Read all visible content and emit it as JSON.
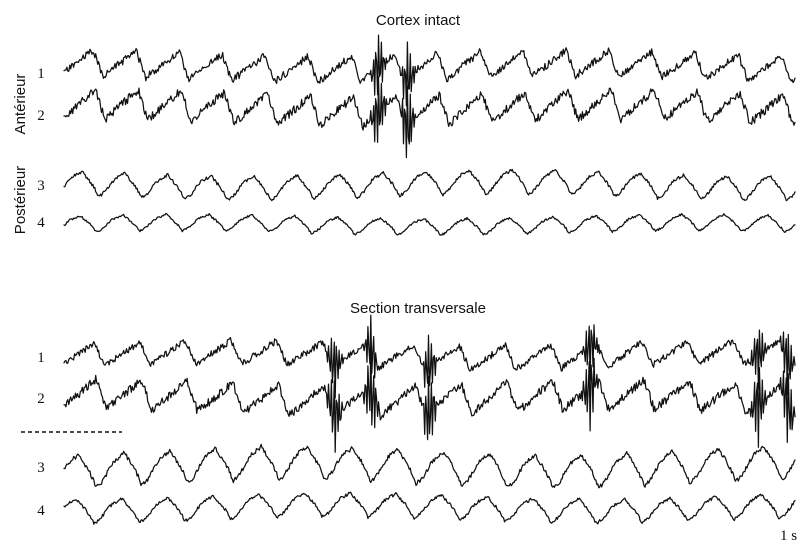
{
  "chart_data": [
    {
      "type": "line",
      "title": "Cortex intact",
      "groups": [
        "Antérieur",
        "Postérieur"
      ],
      "series": [
        {
          "name": "1",
          "group": "Antérieur",
          "waveform": "spike-wave",
          "bursts": [
            0.43,
            0.47
          ]
        },
        {
          "name": "2",
          "group": "Antérieur",
          "waveform": "spike-wave",
          "bursts": [
            0.43,
            0.47
          ]
        },
        {
          "name": "3",
          "group": "Postérieur",
          "waveform": "slow-wave",
          "bursts": []
        },
        {
          "name": "4",
          "group": "Postérieur",
          "waveform": "slow-wave",
          "bursts": []
        }
      ],
      "cycle_count": 17
    },
    {
      "type": "line",
      "title": "Section transversale",
      "series": [
        {
          "name": "1",
          "waveform": "spike-wave",
          "bursts": [
            0.37,
            0.42,
            0.5,
            0.72,
            0.95,
            0.99
          ]
        },
        {
          "name": "2",
          "waveform": "spike-wave",
          "bursts": [
            0.37,
            0.42,
            0.5,
            0.72,
            0.95,
            0.99
          ]
        },
        {
          "name": "3",
          "waveform": "slow-wave",
          "bursts": []
        },
        {
          "name": "4",
          "waveform": "slow-wave",
          "bursts": []
        }
      ],
      "section_marker": "dashed-line",
      "scale_bar": "1 s",
      "cycle_count": 16
    }
  ]
}
